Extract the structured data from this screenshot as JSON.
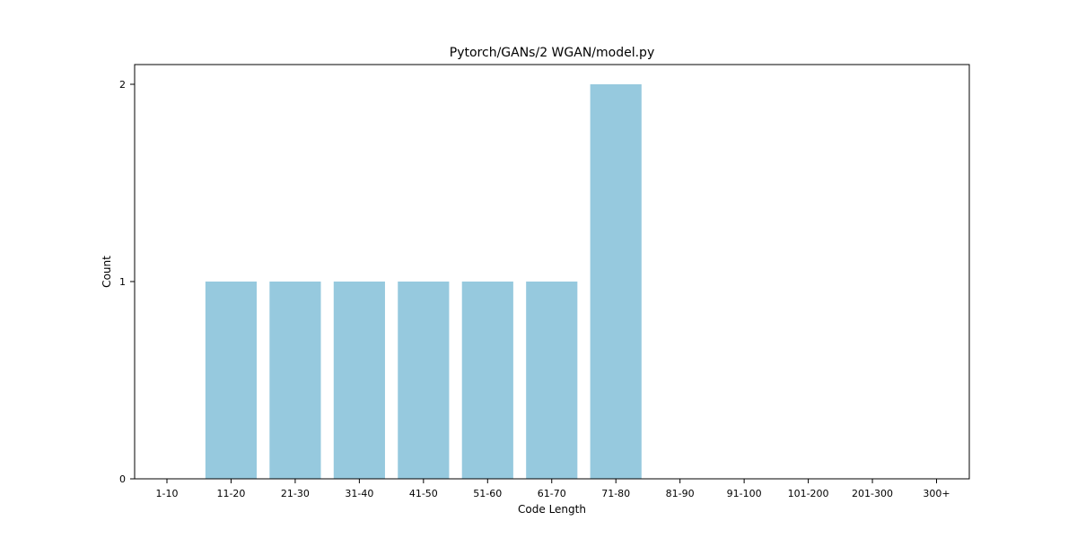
{
  "chart_data": {
    "type": "bar",
    "title": "Pytorch/GANs/2 WGAN/model.py",
    "xlabel": "Code Length",
    "ylabel": "Count",
    "categories": [
      "1-10",
      "11-20",
      "21-30",
      "31-40",
      "41-50",
      "51-60",
      "61-70",
      "71-80",
      "81-90",
      "91-100",
      "101-200",
      "201-300",
      "300+"
    ],
    "values": [
      0,
      1,
      1,
      1,
      1,
      1,
      1,
      2,
      0,
      0,
      0,
      0,
      0
    ],
    "ylim": [
      0,
      2.1
    ],
    "yticks": [
      "0",
      "1",
      "2"
    ],
    "grid": false,
    "bar_color": "#96c9de",
    "legend": "none"
  }
}
